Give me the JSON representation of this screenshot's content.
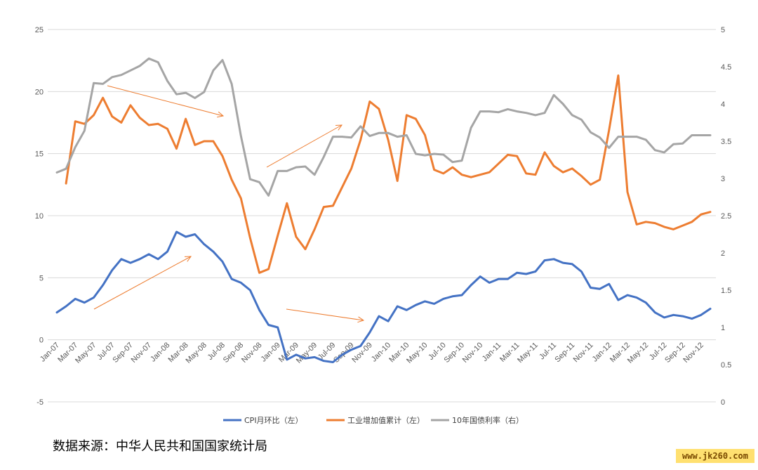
{
  "chart_data": {
    "type": "line",
    "left_axis": {
      "min": -5,
      "max": 25,
      "ticks": [
        -5,
        0,
        5,
        10,
        15,
        20,
        25
      ]
    },
    "right_axis": {
      "min": 0,
      "max": 5,
      "ticks": [
        "0",
        "0.5",
        "1",
        "1.5",
        "2",
        "2.5",
        "3",
        "3.5",
        "4",
        "4.5",
        "5"
      ]
    },
    "grid": true,
    "legend_position": "bottom",
    "x_tick_labels": [
      "Jan-07",
      "Mar-07",
      "May-07",
      "Jul-07",
      "Sep-07",
      "Nov-07",
      "Jan-08",
      "Mar-08",
      "May-08",
      "Jul-08",
      "Sep-08",
      "Nov-08",
      "Jan-09",
      "Mar-09",
      "May-09",
      "Jul-09",
      "Sep-09",
      "Nov-09",
      "Jan-10",
      "Mar-10",
      "May-10",
      "Jul-10",
      "Sep-10",
      "Nov-10",
      "Jan-11",
      "Mar-11",
      "May-11",
      "Jul-11",
      "Sep-11",
      "Nov-11",
      "Jan-12",
      "Mar-12",
      "May-12",
      "Jul-12",
      "Sep-12",
      "Nov-12"
    ],
    "series": [
      {
        "name": "CPI月环比（左）",
        "axis": "left",
        "color": "#4472c4",
        "start_index": 0,
        "values": [
          2.2,
          2.7,
          3.3,
          3.0,
          3.4,
          4.4,
          5.6,
          6.5,
          6.2,
          6.5,
          6.9,
          6.5,
          7.1,
          8.7,
          8.3,
          8.5,
          7.7,
          7.1,
          6.3,
          4.9,
          4.6,
          4.0,
          2.4,
          1.2,
          1.0,
          -1.6,
          -1.2,
          -1.5,
          -1.4,
          -1.7,
          -1.8,
          -1.2,
          -0.8,
          -0.5,
          0.6,
          1.9,
          1.5,
          2.7,
          2.4,
          2.8,
          3.1,
          2.9,
          3.3,
          3.5,
          3.6,
          4.4,
          5.1,
          4.6,
          4.9,
          4.9,
          5.4,
          5.3,
          5.5,
          6.4,
          6.5,
          6.2,
          6.1,
          5.5,
          4.2,
          4.1,
          4.5,
          3.2,
          3.6,
          3.4,
          3.0,
          2.2,
          1.8,
          2.0,
          1.9,
          1.7,
          2.0,
          2.5
        ]
      },
      {
        "name": "工业增加值累计（左）",
        "axis": "left",
        "color": "#ed7d31",
        "start_index": 1,
        "values": [
          12.6,
          17.6,
          17.4,
          18.1,
          19.5,
          18.0,
          17.5,
          18.9,
          17.9,
          17.3,
          17.4,
          17.0,
          15.4,
          17.8,
          15.7,
          16.0,
          16.0,
          14.8,
          12.9,
          11.4,
          8.2,
          5.4,
          5.7,
          8.4,
          11.0,
          8.3,
          7.3,
          8.9,
          10.7,
          10.8,
          12.3,
          13.8,
          16.1,
          19.2,
          18.6,
          16.1,
          12.8,
          18.1,
          17.8,
          16.5,
          13.7,
          13.4,
          13.9,
          13.3,
          13.1,
          13.3,
          13.5,
          14.2,
          14.9,
          14.8,
          13.4,
          13.3,
          15.1,
          14.0,
          13.5,
          13.8,
          13.2,
          12.5,
          12.9,
          16.9,
          21.3,
          11.9,
          9.3,
          9.5,
          9.4,
          9.1,
          8.9,
          9.2,
          9.5,
          10.1,
          10.3
        ]
      },
      {
        "name": "10年国债利率（右）",
        "axis": "right",
        "color": "#a5a5a5",
        "start_index": 0,
        "values": [
          3.08,
          3.13,
          3.42,
          3.64,
          4.28,
          4.27,
          4.36,
          4.39,
          4.45,
          4.51,
          4.61,
          4.56,
          4.31,
          4.13,
          4.15,
          4.08,
          4.16,
          4.45,
          4.59,
          4.27,
          3.57,
          2.99,
          2.95,
          2.77,
          3.1,
          3.1,
          3.15,
          3.16,
          3.05,
          3.29,
          3.56,
          3.56,
          3.55,
          3.7,
          3.57,
          3.61,
          3.61,
          3.56,
          3.58,
          3.33,
          3.31,
          3.33,
          3.32,
          3.22,
          3.24,
          3.68,
          3.9,
          3.9,
          3.89,
          3.93,
          3.9,
          3.88,
          3.85,
          3.88,
          4.12,
          4.0,
          3.85,
          3.79,
          3.62,
          3.55,
          3.41,
          3.56,
          3.56,
          3.56,
          3.52,
          3.38,
          3.35,
          3.46,
          3.47,
          3.58,
          3.58,
          3.58
        ]
      }
    ]
  },
  "footer": {
    "source": "数据来源：中华人民共和国国家统计局",
    "watermark": "www.jk260.com"
  }
}
